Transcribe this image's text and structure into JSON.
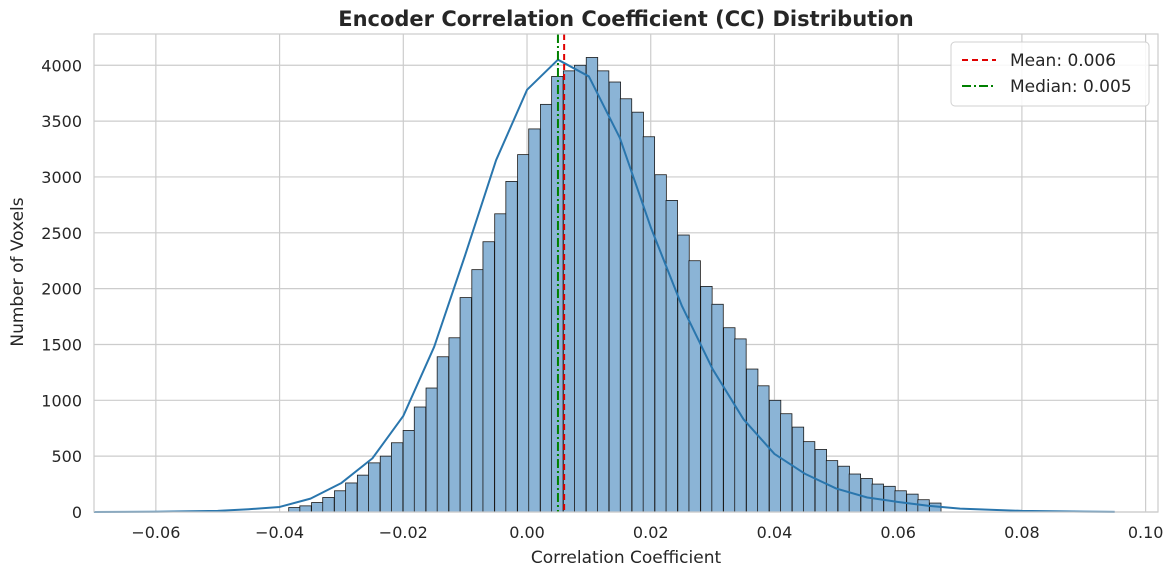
{
  "chart_data": {
    "type": "bar",
    "title": "Encoder Correlation Coefficient (CC) Distribution",
    "xlabel": "Correlation Coefficient",
    "ylabel": "Number of Voxels",
    "xlim": [
      -0.07,
      0.102
    ],
    "ylim": [
      0,
      4280
    ],
    "x_ticks": [
      -0.06,
      -0.04,
      -0.02,
      0.0,
      0.02,
      0.04,
      0.06,
      0.08,
      0.1
    ],
    "x_tick_labels": [
      "−0.06",
      "−0.04",
      "−0.02",
      "0.00",
      "0.02",
      "0.04",
      "0.06",
      "0.08",
      "0.10"
    ],
    "y_ticks": [
      0,
      500,
      1000,
      1500,
      2000,
      2500,
      3000,
      3500,
      4000
    ],
    "y_tick_labels": [
      "0",
      "500",
      "1000",
      "1500",
      "2000",
      "2500",
      "3000",
      "3500",
      "4000"
    ],
    "grid": true,
    "legend_position": "top-right",
    "bin_width": 0.00185,
    "series": [
      {
        "kind": "histogram",
        "bin_centers": [
          -0.0376,
          -0.0358,
          -0.0339,
          -0.0321,
          -0.0302,
          -0.0284,
          -0.0265,
          -0.0247,
          -0.0228,
          -0.021,
          -0.0191,
          -0.0173,
          -0.0154,
          -0.0136,
          -0.0117,
          -0.0099,
          -0.008,
          -0.0062,
          -0.0043,
          -0.0025,
          -0.0006,
          0.0012,
          0.0031,
          0.0049,
          0.0068,
          0.0086,
          0.0105,
          0.0123,
          0.0142,
          0.016,
          0.0179,
          0.0197,
          0.0216,
          0.0234,
          0.0253,
          0.0271,
          0.029,
          0.0308,
          0.0327,
          0.0345,
          0.0364,
          0.0382,
          0.0401,
          0.0419,
          0.0438,
          0.0456,
          0.0475,
          0.0493,
          0.0512,
          0.053,
          0.0549,
          0.0567,
          0.0586,
          0.0604,
          0.0623,
          0.0641,
          0.066
        ],
        "counts": [
          40,
          55,
          85,
          130,
          190,
          260,
          330,
          440,
          500,
          620,
          730,
          940,
          1110,
          1390,
          1560,
          1920,
          2170,
          2420,
          2670,
          2960,
          3200,
          3430,
          3650,
          3900,
          3950,
          4000,
          4070,
          3950,
          3850,
          3700,
          3580,
          3360,
          3020,
          2790,
          2480,
          2250,
          2020,
          1860,
          1650,
          1550,
          1280,
          1130,
          1000,
          880,
          760,
          630,
          560,
          460,
          410,
          340,
          300,
          250,
          230,
          190,
          160,
          110,
          80
        ]
      },
      {
        "kind": "kde",
        "x": [
          -0.07,
          -0.06,
          -0.05,
          -0.045,
          -0.04,
          -0.035,
          -0.03,
          -0.025,
          -0.02,
          -0.015,
          -0.01,
          -0.005,
          0.0,
          0.005,
          0.01,
          0.015,
          0.02,
          0.025,
          0.03,
          0.035,
          0.04,
          0.045,
          0.05,
          0.055,
          0.06,
          0.065,
          0.07,
          0.08,
          0.09,
          0.095
        ],
        "y": [
          0,
          2,
          10,
          25,
          45,
          120,
          260,
          480,
          860,
          1480,
          2300,
          3150,
          3780,
          4050,
          3900,
          3350,
          2550,
          1850,
          1280,
          830,
          520,
          340,
          210,
          130,
          90,
          55,
          30,
          10,
          3,
          1
        ]
      }
    ],
    "reference_lines": [
      {
        "name": "Mean: 0.006",
        "x": 0.006,
        "color": "#e00000",
        "style": "dashed"
      },
      {
        "name": "Median: 0.005",
        "x": 0.005,
        "color": "#008000",
        "style": "dashdot"
      }
    ],
    "colors": {
      "bar_fill": "#8bb4d6",
      "bar_edge": "#1a1a1a",
      "kde_line": "#2a76ad",
      "grid": "#cccccc",
      "axes_edge": "#cccccc"
    }
  }
}
